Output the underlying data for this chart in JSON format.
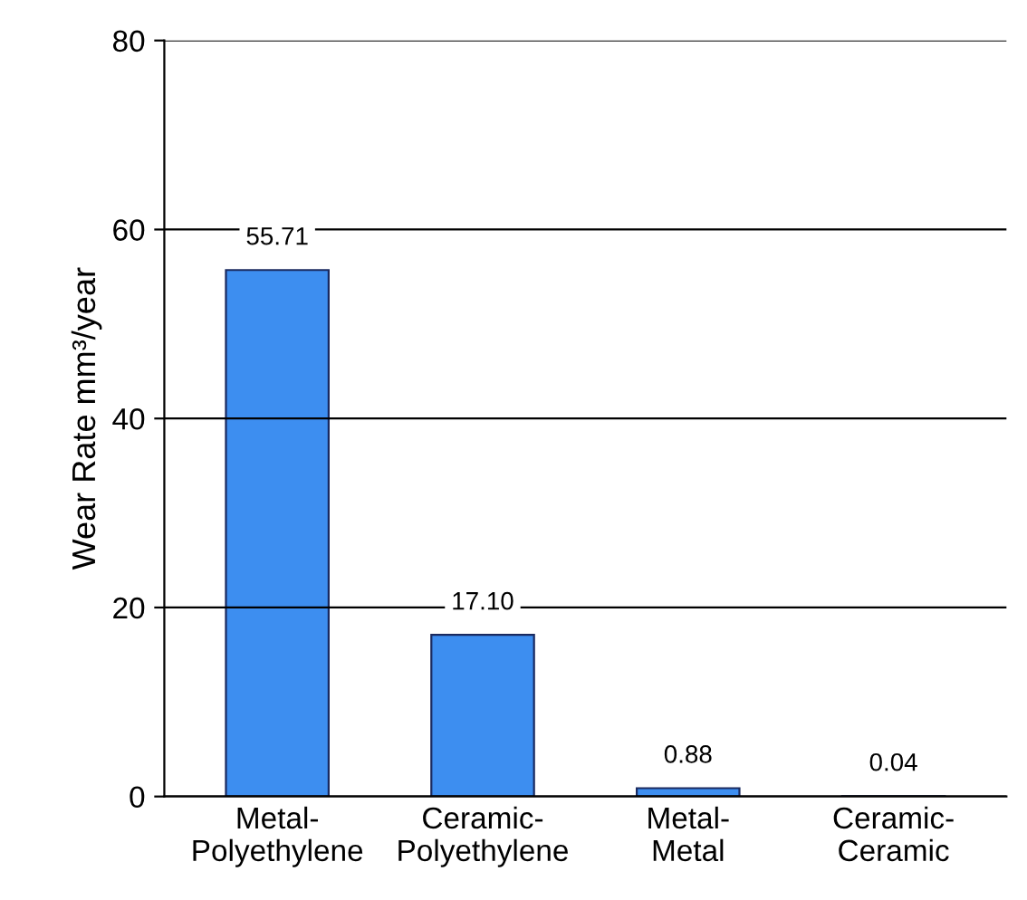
{
  "chart_data": {
    "type": "bar",
    "ylabel": "Wear Rate mm³/year",
    "categories": [
      "Metal-\nPolyethylene",
      "Ceramic-\nPolyethylene",
      "Metal-\nMetal",
      "Ceramic-\nCeramic"
    ],
    "values": [
      55.71,
      17.1,
      0.88,
      0.04
    ],
    "value_labels": [
      "55.71",
      "17.10",
      "0.88",
      "0.04"
    ],
    "color": "#3d8ef0",
    "ylim": [
      0,
      80
    ],
    "yticks": [
      0,
      20,
      40,
      60,
      80
    ],
    "grid": "y"
  }
}
